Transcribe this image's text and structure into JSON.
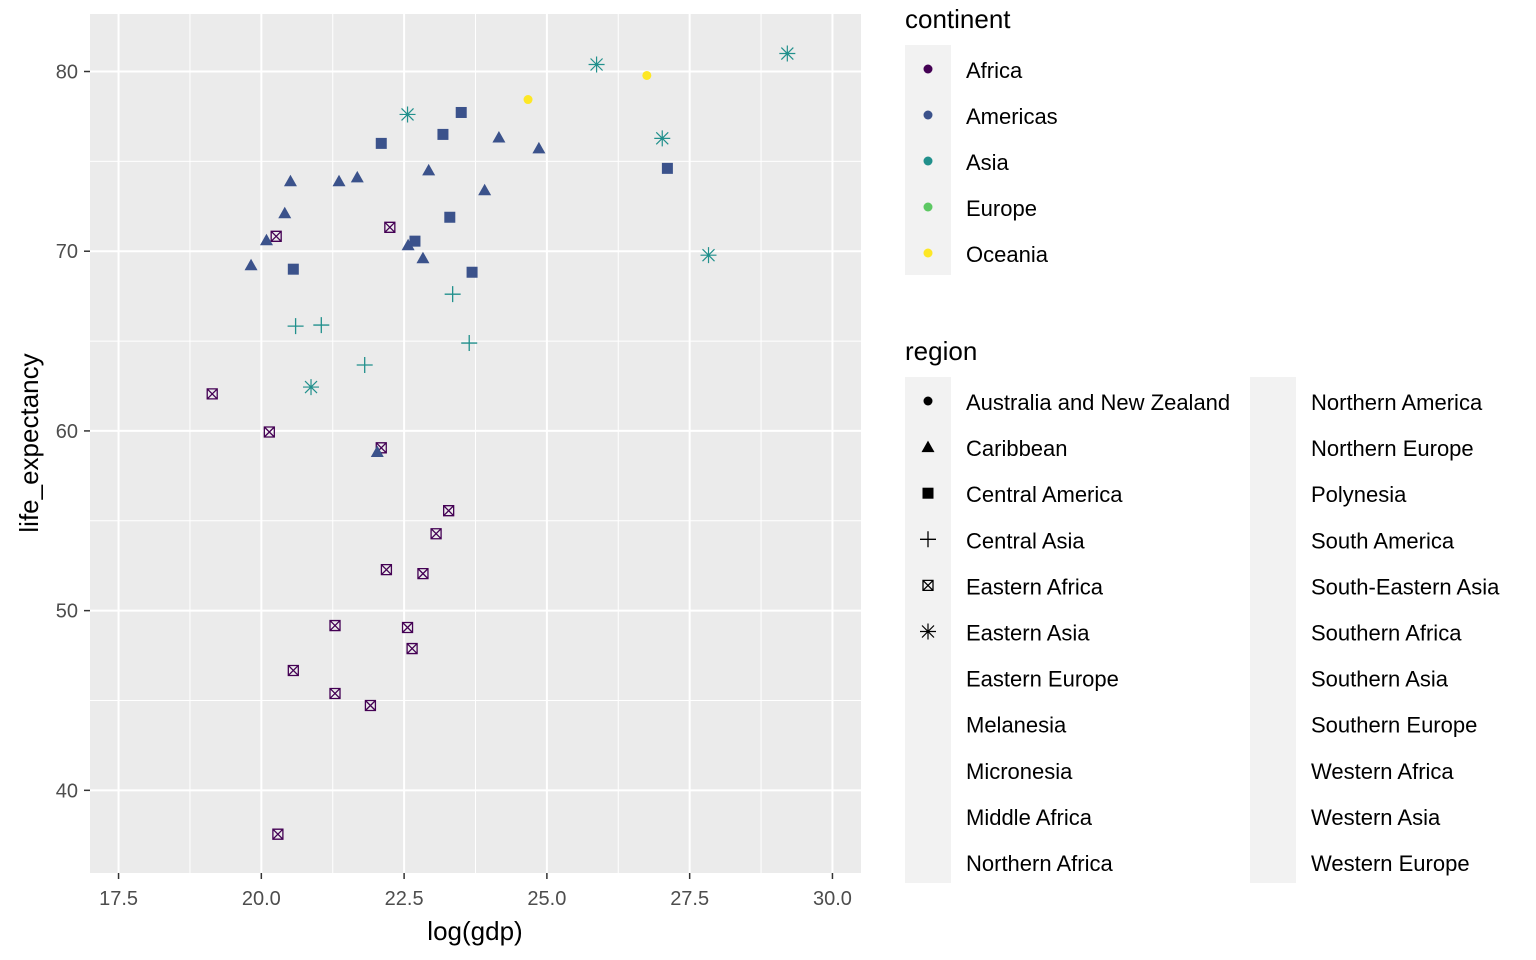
{
  "chart_data": {
    "type": "scatter",
    "xlabel": "log(gdp)",
    "ylabel": "life_expectancy",
    "xlim": [
      17.0,
      30.5
    ],
    "ylim": [
      35.4,
      83.2
    ],
    "xticks": [
      "17.5",
      "20.0",
      "22.5",
      "25.0",
      "27.5",
      "30.0"
    ],
    "xtick_values": [
      17.5,
      20.0,
      22.5,
      25.0,
      27.5,
      30.0
    ],
    "yticks": [
      "40",
      "50",
      "60",
      "70",
      "80"
    ],
    "ytick_values": [
      40,
      50,
      60,
      70,
      80
    ],
    "grid": true,
    "legend_placement": "right",
    "continent_legend": {
      "title": "continent",
      "entries": [
        {
          "label": "Africa",
          "color": "#440154"
        },
        {
          "label": "Americas",
          "color": "#3B528B"
        },
        {
          "label": "Asia",
          "color": "#21908C"
        },
        {
          "label": "Europe",
          "color": "#5DC863"
        },
        {
          "label": "Oceania",
          "color": "#FDE725"
        }
      ]
    },
    "region_legend": {
      "title": "region",
      "entries": [
        {
          "label": "Australia and New Zealand",
          "shape": "circle"
        },
        {
          "label": "Caribbean",
          "shape": "triangle"
        },
        {
          "label": "Central America",
          "shape": "square"
        },
        {
          "label": "Central Asia",
          "shape": "plus"
        },
        {
          "label": "Eastern Africa",
          "shape": "square-x"
        },
        {
          "label": "Eastern Asia",
          "shape": "asterisk"
        },
        {
          "label": "Eastern Europe",
          "shape": "none"
        },
        {
          "label": "Melanesia",
          "shape": "none"
        },
        {
          "label": "Micronesia",
          "shape": "none"
        },
        {
          "label": "Middle Africa",
          "shape": "none"
        },
        {
          "label": "Northern Africa",
          "shape": "none"
        },
        {
          "label": "Northern America",
          "shape": "none"
        },
        {
          "label": "Northern Europe",
          "shape": "none"
        },
        {
          "label": "Polynesia",
          "shape": "none"
        },
        {
          "label": "South America",
          "shape": "none"
        },
        {
          "label": "South-Eastern Asia",
          "shape": "none"
        },
        {
          "label": "Southern Africa",
          "shape": "none"
        },
        {
          "label": "Southern Asia",
          "shape": "none"
        },
        {
          "label": "Southern Europe",
          "shape": "none"
        },
        {
          "label": "Western Africa",
          "shape": "none"
        },
        {
          "label": "Western Asia",
          "shape": "none"
        },
        {
          "label": "Western Europe",
          "shape": "none"
        }
      ]
    },
    "series": [
      {
        "name": "Eastern Africa",
        "continent": "Africa",
        "shape": "square-x",
        "color": "#440154",
        "x": [
          19.14,
          20.14,
          20.26,
          22.25,
          22.1,
          23.28,
          23.06,
          22.19,
          22.83,
          21.29,
          22.56,
          22.64,
          20.56,
          21.29,
          21.91,
          20.29
        ],
        "y": [
          62.06,
          59.94,
          70.83,
          71.33,
          59.06,
          55.56,
          54.28,
          52.28,
          52.06,
          49.17,
          49.06,
          47.89,
          46.67,
          45.39,
          44.72,
          37.56
        ]
      },
      {
        "name": "Caribbean",
        "continent": "Americas",
        "shape": "triangle",
        "color": "#3B528B",
        "x": [
          19.82,
          20.09,
          20.41,
          20.51,
          21.36,
          21.68,
          22.93,
          22.57,
          22.83,
          23.91,
          24.16,
          24.86,
          22.03
        ],
        "y": [
          69.22,
          70.61,
          72.11,
          73.89,
          73.89,
          74.11,
          74.5,
          70.33,
          69.61,
          73.39,
          76.33,
          75.72,
          58.83
        ]
      },
      {
        "name": "Central America",
        "continent": "Americas",
        "shape": "square",
        "color": "#3B528B",
        "x": [
          22.1,
          23.18,
          23.5,
          20.56,
          22.69,
          23.3,
          23.69,
          27.11
        ],
        "y": [
          76.0,
          76.5,
          77.72,
          69.0,
          70.56,
          71.89,
          68.83,
          74.61
        ]
      },
      {
        "name": "Central Asia",
        "continent": "Asia",
        "shape": "plus",
        "color": "#21908C",
        "x": [
          20.6,
          21.05,
          21.81,
          23.35,
          23.64
        ],
        "y": [
          65.83,
          65.89,
          63.67,
          67.61,
          64.89
        ]
      },
      {
        "name": "Eastern Asia",
        "continent": "Asia",
        "shape": "asterisk",
        "color": "#21908C",
        "x": [
          22.56,
          20.87,
          25.87,
          27.02,
          27.83,
          29.21
        ],
        "y": [
          77.61,
          62.44,
          80.39,
          76.28,
          69.78,
          81.0
        ]
      },
      {
        "name": "Australia and New Zealand",
        "continent": "Oceania",
        "shape": "circle",
        "color": "#FDE725",
        "x": [
          24.67,
          26.75
        ],
        "y": [
          78.44,
          79.78
        ]
      }
    ]
  }
}
